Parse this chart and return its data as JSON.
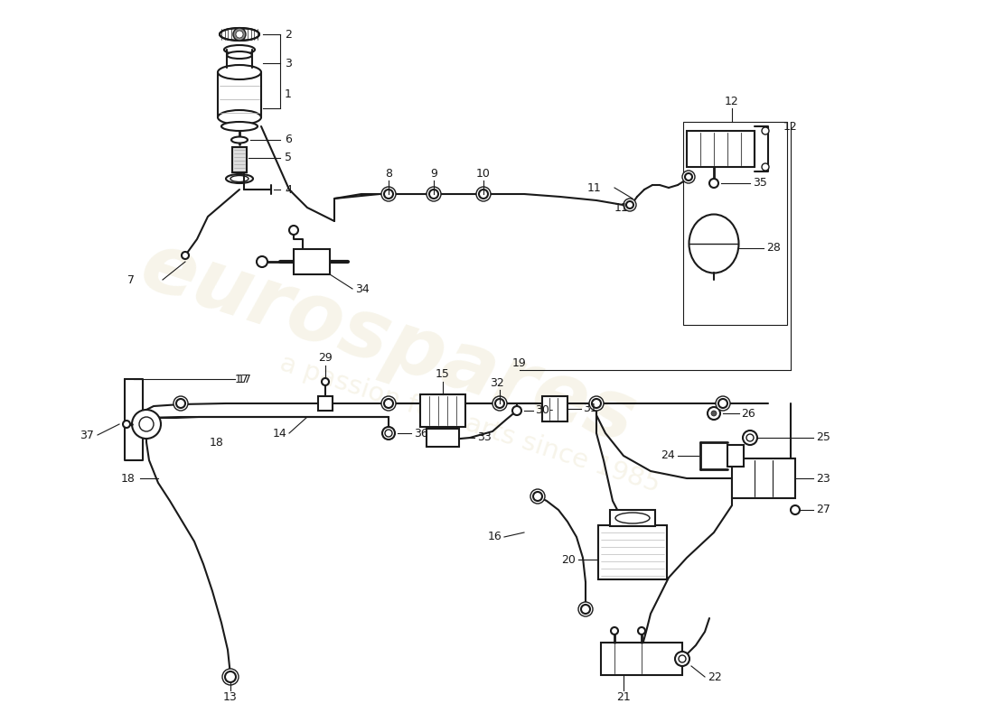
{
  "bg": "#ffffff",
  "lc": "#1a1a1a",
  "wm1": "eurospares",
  "wm2": "a passion for parts since 1985",
  "wm_color": "#c8b870",
  "wm_alpha": 0.15,
  "figw": 11.0,
  "figh": 8.0,
  "dpi": 100
}
